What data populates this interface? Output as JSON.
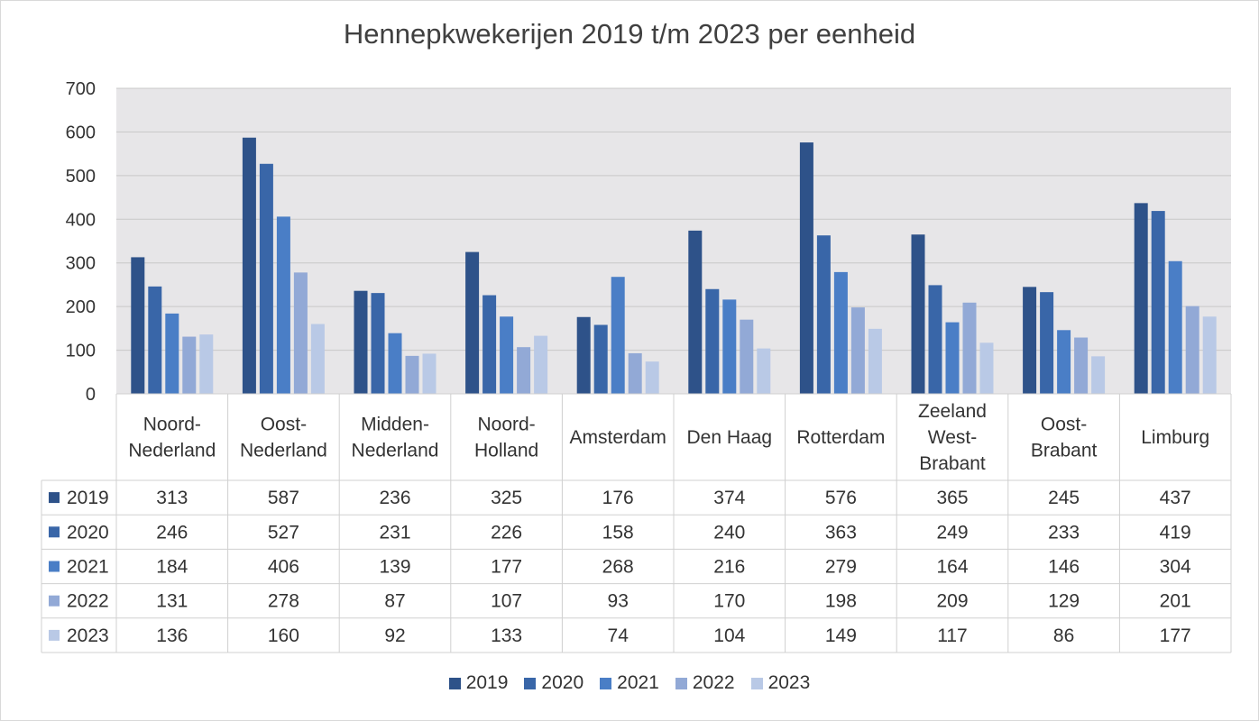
{
  "chart_data": {
    "type": "bar",
    "title": "Hennepkwekerijen 2019 t/m 2023 per eenheid",
    "categories": [
      [
        "Noord-",
        "Nederland"
      ],
      [
        "Oost-",
        "Nederland"
      ],
      [
        "Midden-",
        "Nederland"
      ],
      [
        "Noord-",
        "Holland"
      ],
      [
        "Amsterdam"
      ],
      [
        "Den Haag"
      ],
      [
        "Rotterdam"
      ],
      [
        "Zeeland",
        "West-",
        "Brabant"
      ],
      [
        "Oost-",
        "Brabant"
      ],
      [
        "Limburg"
      ]
    ],
    "series": [
      {
        "name": "2019",
        "color": "#2e5289",
        "values": [
          313,
          587,
          236,
          325,
          176,
          374,
          576,
          365,
          245,
          437
        ]
      },
      {
        "name": "2020",
        "color": "#3966a8",
        "values": [
          246,
          527,
          231,
          226,
          158,
          240,
          363,
          249,
          233,
          419
        ]
      },
      {
        "name": "2021",
        "color": "#4a7ec6",
        "values": [
          184,
          406,
          139,
          177,
          268,
          216,
          279,
          164,
          146,
          304
        ]
      },
      {
        "name": "2022",
        "color": "#92a9d6",
        "values": [
          131,
          278,
          87,
          107,
          93,
          170,
          198,
          209,
          129,
          201
        ]
      },
      {
        "name": "2023",
        "color": "#b9c9e6",
        "values": [
          136,
          160,
          92,
          133,
          74,
          104,
          149,
          117,
          86,
          177
        ]
      }
    ],
    "ylim": [
      0,
      700
    ],
    "yticks": [
      0,
      100,
      200,
      300,
      400,
      500,
      600,
      700
    ],
    "grid": true,
    "plot_background": "#e7e6e8",
    "data_table": true,
    "legend_position": "bottom"
  }
}
